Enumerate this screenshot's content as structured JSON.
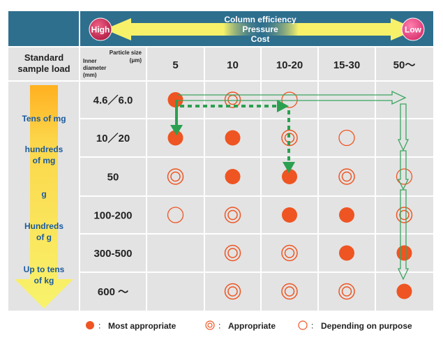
{
  "header": {
    "lines": [
      "Column efficiency",
      "Pressure",
      "Cost"
    ],
    "high_label": "High",
    "low_label": "Low"
  },
  "corner": {
    "title": "Standard sample load",
    "title_lines": [
      "Standard",
      "sample load"
    ],
    "particle_size_lines": [
      "Particle size",
      "(μm)"
    ],
    "inner_diameter_lines": [
      "Inner",
      "diameter",
      "(mm)"
    ]
  },
  "columns": [
    "5",
    "10",
    "10-20",
    "15-30",
    "50～"
  ],
  "rows": [
    {
      "diameter": "4.6／6.0",
      "cells": [
        "most",
        "appropriate",
        "purpose",
        "",
        ""
      ]
    },
    {
      "diameter": "10／20",
      "cells": [
        "most",
        "most",
        "appropriate",
        "purpose",
        ""
      ]
    },
    {
      "diameter": "50",
      "cells": [
        "appropriate",
        "most",
        "most",
        "appropriate",
        "purpose"
      ]
    },
    {
      "diameter": "100-200",
      "cells": [
        "purpose",
        "appropriate",
        "most",
        "most",
        "appropriate"
      ]
    },
    {
      "diameter": "300-500",
      "cells": [
        "",
        "appropriate",
        "appropriate",
        "most",
        "most"
      ]
    },
    {
      "diameter": "600 ～",
      "cells": [
        "",
        "appropriate",
        "appropriate",
        "appropriate",
        "most"
      ]
    }
  ],
  "load_labels": [
    {
      "lines": [
        "Tens of mg"
      ]
    },
    {
      "lines": [
        "hundreds",
        "of mg"
      ]
    },
    {
      "lines": [
        "g"
      ]
    },
    {
      "lines": [
        "Hundreds",
        "of g"
      ]
    },
    {
      "lines": [
        "Up to tens",
        "of kg"
      ]
    }
  ],
  "legend": {
    "most": "Most appropriate",
    "appropriate": "Appropriate",
    "purpose": "Depending on purpose"
  },
  "colors": {
    "header_blue": "#2e6f8e",
    "grid_fill": "#e3e3e3",
    "grid_line": "#ffffff",
    "dot_red": "#ee5522",
    "text_blue": "#1a5a9e",
    "green_arrow": "#2aa050",
    "green_outline": "#3aa560",
    "yellow": "#f5f06a",
    "high_badge": "#d6305a",
    "low_badge": "#e8508a"
  }
}
